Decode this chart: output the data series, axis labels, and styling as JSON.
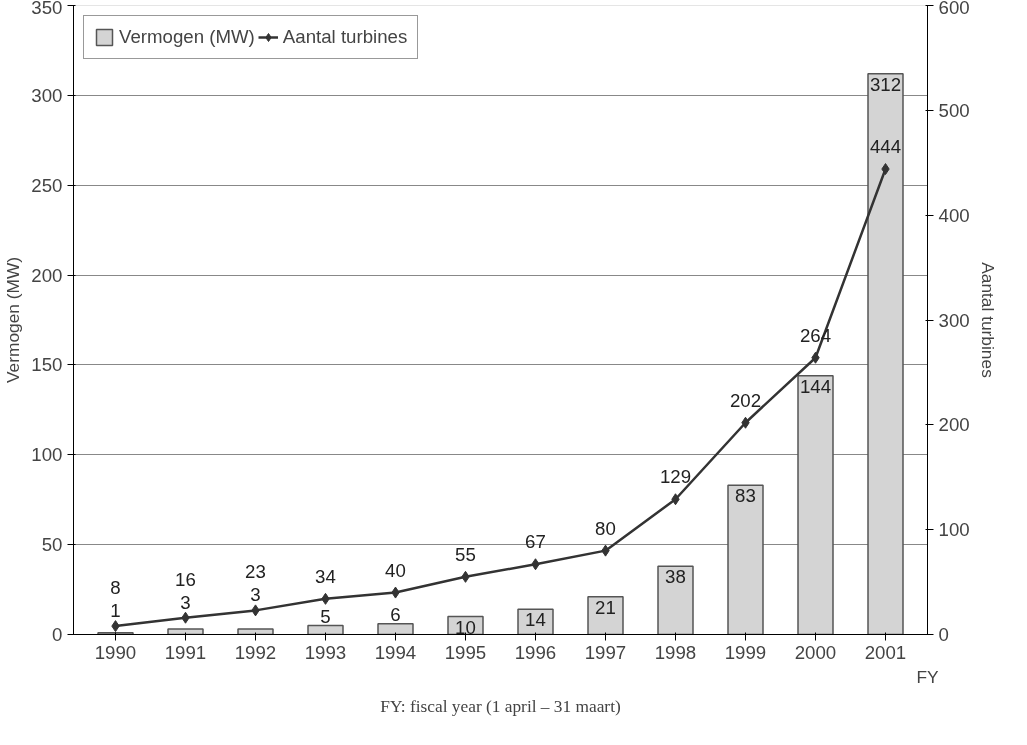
{
  "chart_data": {
    "type": "bar",
    "categories": [
      "1990",
      "1991",
      "1992",
      "1993",
      "1994",
      "1995",
      "1996",
      "1997",
      "1998",
      "1999",
      "2000",
      "2001"
    ],
    "xlabel": "FY",
    "ylabel": "Vermogen (MW)",
    "y2label": "Aantal turbines",
    "series": [
      {
        "name": "Vermogen (MW)",
        "color": "#d4d4d4",
        "values": [
          1,
          3,
          3,
          5,
          6,
          10,
          14,
          21,
          38,
          83,
          144,
          312
        ]
      },
      {
        "name": "Aantal turbines",
        "type": "line",
        "axis": "y2",
        "color": "#333333",
        "marker": "diamond",
        "values": [
          8,
          16,
          23,
          34,
          40,
          55,
          67,
          80,
          129,
          202,
          264,
          444
        ]
      }
    ],
    "ylim": [
      0,
      350
    ],
    "yticks": [
      0,
      50,
      100,
      150,
      200,
      250,
      300,
      350
    ],
    "y2lim": [
      0,
      600
    ],
    "y2ticks": [
      0,
      100,
      200,
      300,
      400,
      500,
      600
    ],
    "grid": "y",
    "legend": "top left",
    "data_labels": true,
    "annotations": [
      "FY: fiscal year (1 april – 31 maart)"
    ]
  }
}
